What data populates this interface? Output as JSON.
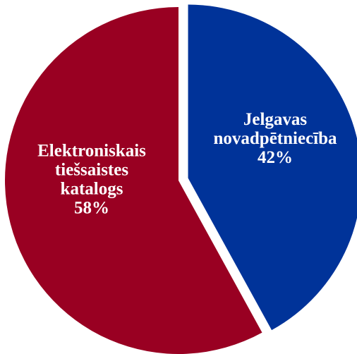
{
  "chart_data": {
    "type": "pie",
    "slices": [
      {
        "name_lines": [
          "Jelgavas",
          "novadpētniecība"
        ],
        "value": 42,
        "value_label": "42%",
        "color": "#003399",
        "exploded": true
      },
      {
        "name_lines": [
          "Elektroniskais",
          "tiešsaistes",
          "katalogs"
        ],
        "value": 58,
        "value_label": "58%",
        "color": "#990022",
        "exploded": false
      }
    ],
    "start": "12 o'clock",
    "direction": "clockwise"
  }
}
